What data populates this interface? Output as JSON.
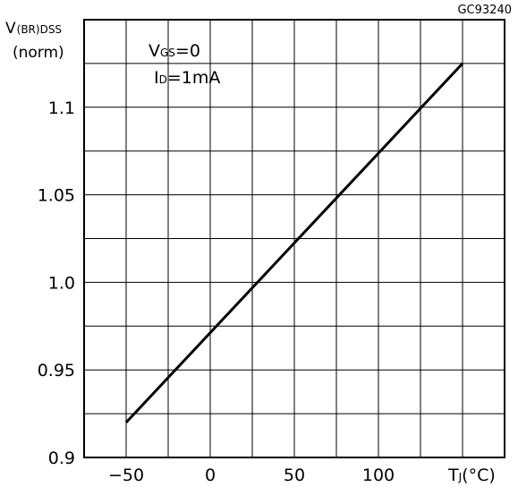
{
  "chart_data": {
    "type": "line",
    "figure_code": "GC93240",
    "ylabel": {
      "main": "V",
      "sub": "(BR)DSS",
      "unit": "(norm)"
    },
    "xlabel": {
      "main": "T",
      "sub": "J",
      "unit": "(°C)"
    },
    "xlim": [
      -75,
      175
    ],
    "ylim": [
      0.9,
      1.15
    ],
    "x_tick_values": [
      -50,
      0,
      50,
      100
    ],
    "x_tick_labels": [
      "−50",
      "0",
      "50",
      "100"
    ],
    "y_tick_values": [
      0.9,
      0.95,
      1.0,
      1.05,
      1.1
    ],
    "y_tick_labels": [
      "0.9",
      "0.95",
      "1.0",
      "1.05",
      "1.1"
    ],
    "grid": true,
    "annotations": [
      {
        "main": "V",
        "sub": "GS",
        "rest": "=0"
      },
      {
        "main": "I",
        "sub": "D",
        "rest": "=1mA"
      }
    ],
    "series": [
      {
        "x": [
          -50,
          150
        ],
        "y": [
          0.92,
          1.125
        ],
        "color": "#000000"
      }
    ]
  }
}
